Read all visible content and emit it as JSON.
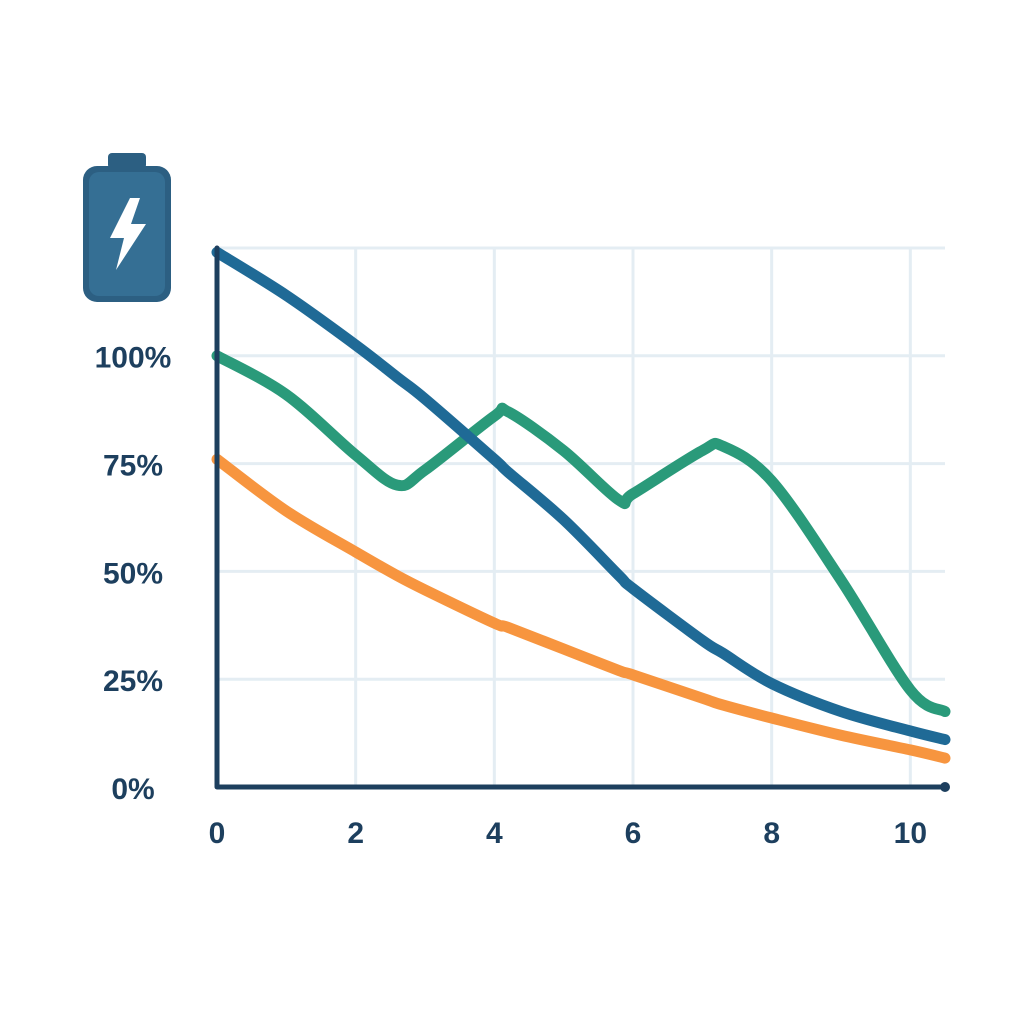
{
  "chart_data": {
    "type": "line",
    "x": [
      0,
      1,
      2,
      2.6,
      3,
      4,
      4.2,
      5,
      5.8,
      6,
      7,
      7.3,
      8,
      9,
      10,
      10.5
    ],
    "series": [
      {
        "color": "#1f6a96",
        "values": [
          124,
          114,
          102.5,
          95,
          90,
          76,
          73,
          62,
          49,
          46,
          34,
          31,
          24,
          17.5,
          13,
          11
        ]
      },
      {
        "color": "#2a9a7a",
        "values": [
          100,
          91,
          77,
          70,
          73.5,
          86,
          87,
          78,
          66.5,
          68,
          78,
          79,
          71,
          48,
          22.5,
          17.5
        ]
      },
      {
        "color": "#f7953f",
        "values": [
          76,
          64,
          54.5,
          49,
          45.7,
          38,
          37,
          32,
          27,
          26,
          20.6,
          19,
          16,
          12,
          8.6,
          6.7
        ]
      }
    ],
    "xlim": [
      0,
      10.5
    ],
    "xticks": [
      0,
      2,
      4,
      6,
      8,
      10
    ],
    "ylim": [
      0,
      125
    ],
    "yticks": [
      {
        "value": 0,
        "label": "0%"
      },
      {
        "value": 25,
        "label": "25%"
      },
      {
        "value": 50,
        "label": "50%"
      },
      {
        "value": 75,
        "label": "75%"
      },
      {
        "value": 100,
        "label": "100%"
      }
    ],
    "grid": true
  }
}
